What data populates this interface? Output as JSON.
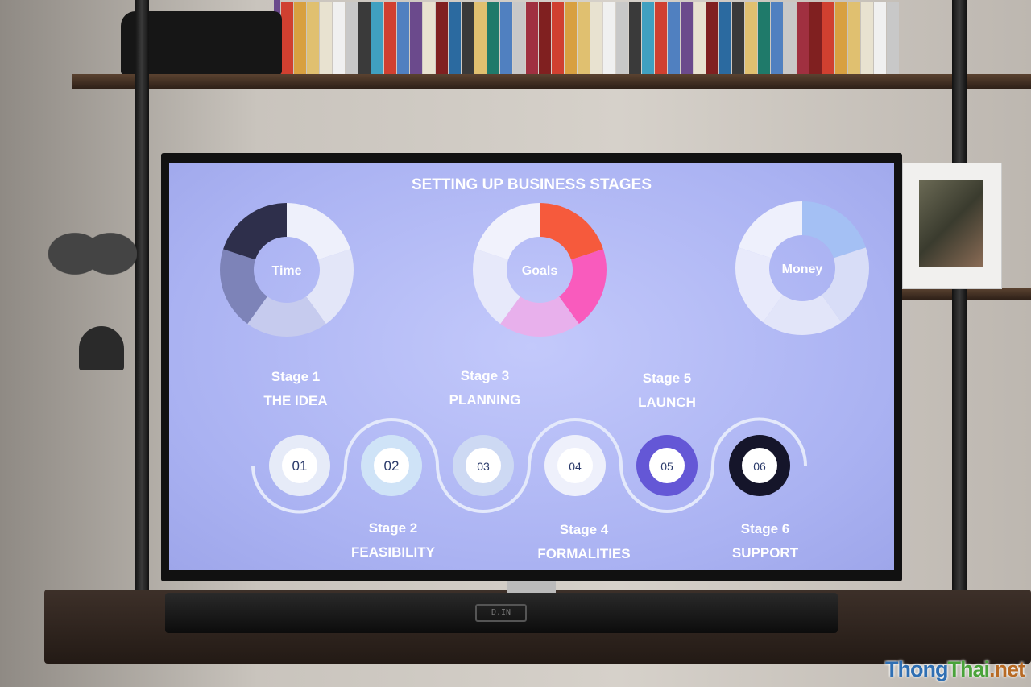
{
  "slide": {
    "title": "SETTING UP BUSINESS STAGES",
    "donuts": [
      {
        "label": "Time",
        "colors": [
          "#eef0fb",
          "#e3e6f8",
          "#c6cbee",
          "#7d83b8",
          "#2e2f4b"
        ]
      },
      {
        "label": "Goals",
        "colors": [
          "#f65a3c",
          "#f95bbd",
          "#e8b0ec",
          "#e7e9fa",
          "#f1f2fc"
        ]
      },
      {
        "label": "Money",
        "colors": [
          "#a4c0f4",
          "#d8ddf7",
          "#e2e5f9",
          "#e8eafb",
          "#eef0fc"
        ]
      }
    ],
    "stages": [
      {
        "stage": "Stage 1",
        "name": "THE IDEA",
        "number": "01",
        "ring": "#e6ebf8"
      },
      {
        "stage": "Stage 2",
        "name": "FEASIBILITY",
        "number": "02",
        "ring": "#cfe3f7"
      },
      {
        "stage": "Stage 3",
        "name": "PLANNING",
        "number": "03",
        "ring": "#cdd9f3"
      },
      {
        "stage": "Stage 4",
        "name": "FORMALITIES",
        "number": "04",
        "ring": "#eef0fb"
      },
      {
        "stage": "Stage 5",
        "name": "LAUNCH",
        "number": "05",
        "ring": "#6457d6"
      },
      {
        "stage": "Stage 6",
        "name": "SUPPORT",
        "number": "06",
        "ring": "#15152a"
      }
    ]
  },
  "soundbar": {
    "display": "D.IN"
  },
  "watermark": {
    "thong": "Thong",
    "thai": "Thai",
    "net": ".net"
  }
}
